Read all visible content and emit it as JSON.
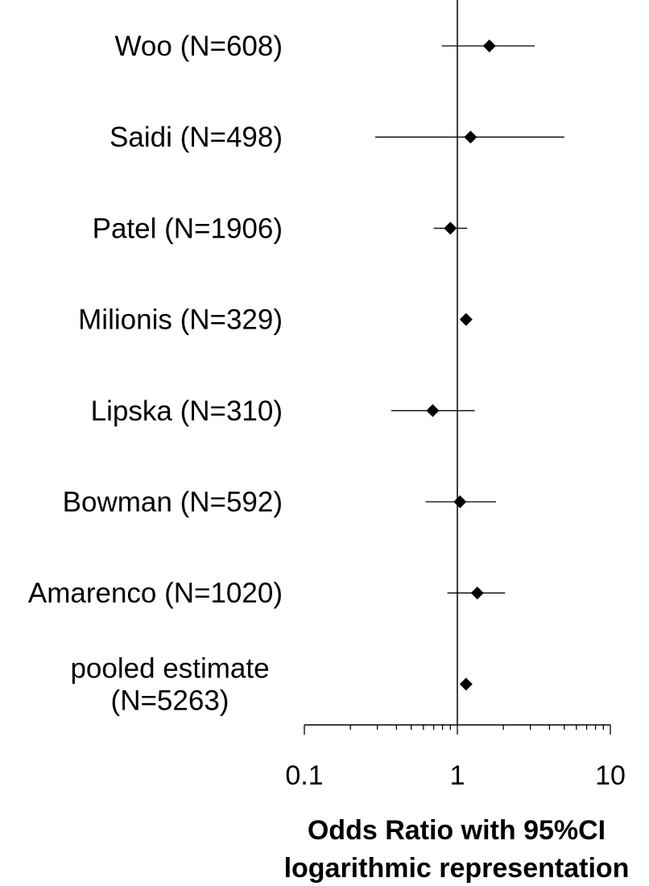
{
  "chart_data": {
    "type": "forest",
    "x_scale": "log",
    "xlim": [
      0.1,
      10
    ],
    "x_ticks": [
      "0.1",
      "1",
      "10"
    ],
    "reference_line": 1,
    "xlabel_lines": [
      "Odds Ratio with 95%CI",
      "logarithmic representation"
    ],
    "studies": [
      {
        "label_lines": [
          "Woo (N=608)"
        ],
        "or": 1.62,
        "ci_low": 0.79,
        "ci_high": 3.2
      },
      {
        "label_lines": [
          "Saidi (N=498)"
        ],
        "or": 1.22,
        "ci_low": 0.29,
        "ci_high": 5.0
      },
      {
        "label_lines": [
          "Patel (N=1906)"
        ],
        "or": 0.9,
        "ci_low": 0.7,
        "ci_high": 1.16
      },
      {
        "label_lines": [
          "Milionis (N=329)"
        ],
        "or": 1.14,
        "ci_low": 1.14,
        "ci_high": 1.14
      },
      {
        "label_lines": [
          "Lipska (N=310)"
        ],
        "or": 0.69,
        "ci_low": 0.37,
        "ci_high": 1.3
      },
      {
        "label_lines": [
          "Bowman (N=592)"
        ],
        "or": 1.04,
        "ci_low": 0.62,
        "ci_high": 1.79
      },
      {
        "label_lines": [
          "Amarenco (N=1020)"
        ],
        "or": 1.35,
        "ci_low": 0.86,
        "ci_high": 2.05
      },
      {
        "label_lines": [
          "pooled estimate",
          "(N=5263)"
        ],
        "or": 1.14,
        "ci_low": 1.14,
        "ci_high": 1.14
      }
    ]
  }
}
